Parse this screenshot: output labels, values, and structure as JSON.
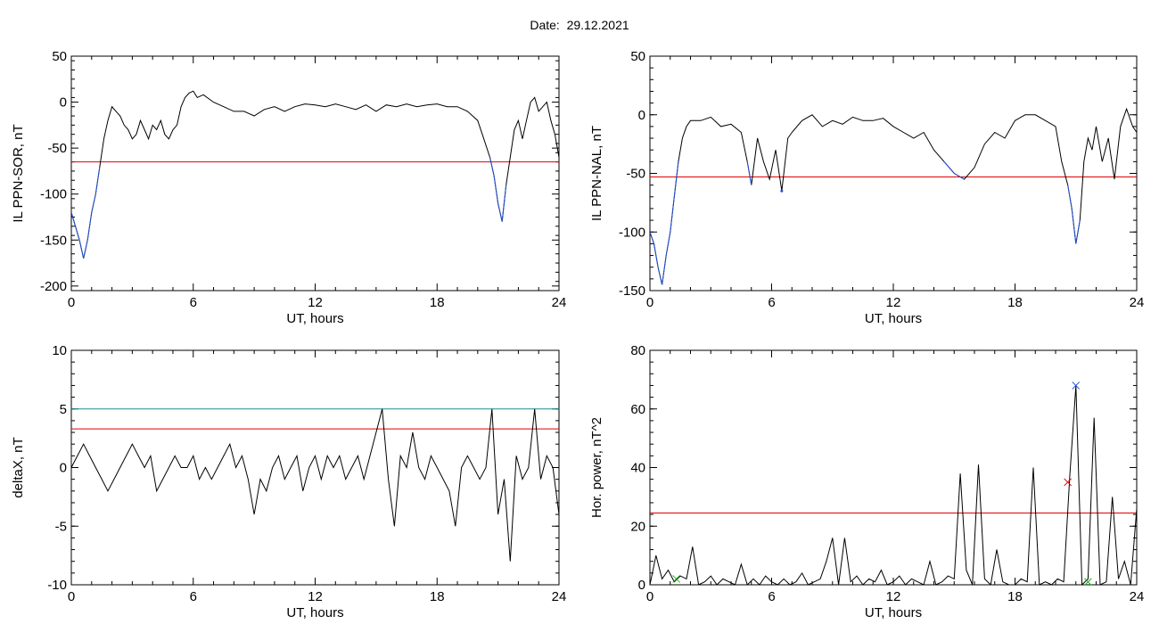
{
  "date_label": "Date:  29.12.2021",
  "chart_data": [
    {
      "type": "line",
      "ylabel": "IL PPN-SOR, nT",
      "xlabel": "UT, hours",
      "xlim": [
        0,
        24
      ],
      "ylim": [
        -205,
        50
      ],
      "xticks": [
        0,
        6,
        12,
        18,
        24
      ],
      "yticks": [
        50,
        0,
        -50,
        -100,
        -150,
        -200
      ],
      "threshold_lines": [
        {
          "value": -65,
          "color": "#e00000"
        }
      ],
      "series": [
        {
          "color": "#000000",
          "x": [
            0,
            0.2,
            0.4,
            0.6,
            0.8,
            1.0,
            1.2,
            1.4,
            1.6,
            1.8,
            2.0,
            2.2,
            2.4,
            2.6,
            2.8,
            3.0,
            3.2,
            3.4,
            3.6,
            3.8,
            4.0,
            4.2,
            4.4,
            4.6,
            4.8,
            5.0,
            5.2,
            5.4,
            5.6,
            5.8,
            6.0,
            6.2,
            6.5,
            7.0,
            7.5,
            8.0,
            8.5,
            9.0,
            9.5,
            10.0,
            10.5,
            11.0,
            11.5,
            12.0,
            12.5,
            13.0,
            13.5,
            14.0,
            14.5,
            15.0,
            15.5,
            16.0,
            16.5,
            17.0,
            17.5,
            18.0,
            18.5,
            19.0,
            19.5,
            20.0,
            20.3,
            20.6,
            20.8,
            21.0,
            21.2,
            21.4,
            21.6,
            21.8,
            22.0,
            22.2,
            22.4,
            22.6,
            22.8,
            23.0,
            23.2,
            23.4,
            23.6,
            23.8,
            24.0
          ],
          "y": [
            -120,
            -135,
            -150,
            -170,
            -150,
            -120,
            -100,
            -70,
            -40,
            -20,
            -5,
            -10,
            -15,
            -25,
            -30,
            -40,
            -35,
            -20,
            -30,
            -40,
            -25,
            -30,
            -20,
            -35,
            -40,
            -30,
            -25,
            -5,
            5,
            10,
            12,
            5,
            8,
            0,
            -5,
            -10,
            -10,
            -15,
            -8,
            -5,
            -10,
            -5,
            -2,
            -3,
            -5,
            -2,
            -5,
            -8,
            -3,
            -10,
            -3,
            -5,
            -2,
            -5,
            -3,
            -2,
            -5,
            -5,
            -10,
            -20,
            -40,
            -60,
            -80,
            -110,
            -130,
            -90,
            -60,
            -30,
            -20,
            -40,
            -20,
            0,
            5,
            -10,
            -5,
            0,
            -20,
            -35,
            -60
          ]
        },
        {
          "color": "#1f4fd0",
          "x": [
            0,
            0.2,
            0.4,
            0.6,
            0.8,
            1.0,
            1.2,
            1.4
          ],
          "y": [
            -120,
            -135,
            -150,
            -170,
            -150,
            -120,
            -100,
            -70
          ]
        },
        {
          "color": "#1f4fd0",
          "x": [
            20.6,
            20.8,
            21.0,
            21.2,
            21.4
          ],
          "y": [
            -60,
            -80,
            -110,
            -130,
            -90
          ]
        }
      ]
    },
    {
      "type": "line",
      "ylabel": "IL PPN-NAL, nT",
      "xlabel": "UT, hours",
      "xlim": [
        0,
        24
      ],
      "ylim": [
        -150,
        50
      ],
      "xticks": [
        0,
        6,
        12,
        18,
        24
      ],
      "yticks": [
        50,
        0,
        -50,
        -100,
        -150
      ],
      "threshold_lines": [
        {
          "value": -53,
          "color": "#e00000"
        }
      ],
      "series": [
        {
          "color": "#000000",
          "x": [
            0,
            0.2,
            0.4,
            0.6,
            0.8,
            1.0,
            1.2,
            1.4,
            1.6,
            1.8,
            2.0,
            2.5,
            3.0,
            3.5,
            4.0,
            4.5,
            4.8,
            5.0,
            5.3,
            5.6,
            5.9,
            6.2,
            6.5,
            6.8,
            7.0,
            7.5,
            8.0,
            8.5,
            9.0,
            9.5,
            10.0,
            10.5,
            11.0,
            11.5,
            12.0,
            12.5,
            13.0,
            13.5,
            14.0,
            14.5,
            15.0,
            15.5,
            16.0,
            16.5,
            17.0,
            17.5,
            18.0,
            18.5,
            19.0,
            19.5,
            20.0,
            20.3,
            20.6,
            20.8,
            21.0,
            21.2,
            21.4,
            21.6,
            21.8,
            22.0,
            22.3,
            22.6,
            22.9,
            23.2,
            23.5,
            23.8,
            24.0
          ],
          "y": [
            -100,
            -110,
            -130,
            -145,
            -120,
            -100,
            -70,
            -40,
            -20,
            -10,
            -5,
            -5,
            -2,
            -10,
            -8,
            -15,
            -40,
            -60,
            -20,
            -40,
            -55,
            -30,
            -65,
            -20,
            -15,
            -5,
            0,
            -10,
            -5,
            -8,
            -2,
            -5,
            -5,
            -3,
            -10,
            -15,
            -20,
            -15,
            -30,
            -40,
            -50,
            -55,
            -45,
            -25,
            -15,
            -20,
            -5,
            0,
            0,
            -5,
            -10,
            -40,
            -60,
            -80,
            -110,
            -90,
            -40,
            -20,
            -30,
            -10,
            -40,
            -20,
            -55,
            -10,
            5,
            -10,
            -15
          ]
        },
        {
          "color": "#1f4fd0",
          "x": [
            0,
            0.2,
            0.4,
            0.6,
            0.8,
            1.0,
            1.2,
            1.4
          ],
          "y": [
            -100,
            -110,
            -130,
            -145,
            -120,
            -100,
            -70,
            -40
          ]
        },
        {
          "color": "#1f4fd0",
          "x": [
            4.8,
            5.0
          ],
          "y": [
            -40,
            -60
          ]
        },
        {
          "color": "#1f4fd0",
          "x": [
            6.5
          ],
          "y": [
            -65
          ]
        },
        {
          "color": "#1f4fd0",
          "x": [
            14.5,
            15.0,
            15.5
          ],
          "y": [
            -40,
            -50,
            -55
          ]
        },
        {
          "color": "#1f4fd0",
          "x": [
            20.6,
            20.8,
            21.0,
            21.2
          ],
          "y": [
            -60,
            -80,
            -110,
            -90
          ]
        }
      ]
    },
    {
      "type": "line",
      "ylabel": "deltaX, nT",
      "xlabel": "UT, hours",
      "xlim": [
        0,
        24
      ],
      "ylim": [
        -10,
        10
      ],
      "xticks": [
        0,
        6,
        12,
        18,
        24
      ],
      "yticks": [
        10,
        5,
        0,
        -5,
        -10
      ],
      "threshold_lines": [
        {
          "value": 5,
          "color": "#1a8f8f"
        },
        {
          "value": 3.3,
          "color": "#e00000"
        }
      ],
      "series": [
        {
          "color": "#000000",
          "x": [
            0,
            0.3,
            0.6,
            0.9,
            1.2,
            1.5,
            1.8,
            2.1,
            2.4,
            2.7,
            3.0,
            3.3,
            3.6,
            3.9,
            4.2,
            4.5,
            4.8,
            5.1,
            5.4,
            5.7,
            6.0,
            6.3,
            6.6,
            6.9,
            7.2,
            7.5,
            7.8,
            8.1,
            8.4,
            8.7,
            9.0,
            9.3,
            9.6,
            9.9,
            10.2,
            10.5,
            10.8,
            11.1,
            11.4,
            11.7,
            12.0,
            12.3,
            12.6,
            12.9,
            13.2,
            13.5,
            13.8,
            14.1,
            14.4,
            14.7,
            15.0,
            15.3,
            15.6,
            15.9,
            16.2,
            16.5,
            16.8,
            17.1,
            17.4,
            17.7,
            18.0,
            18.3,
            18.6,
            18.9,
            19.2,
            19.5,
            19.8,
            20.1,
            20.4,
            20.7,
            21.0,
            21.3,
            21.6,
            21.9,
            22.2,
            22.5,
            22.8,
            23.1,
            23.4,
            23.7,
            24.0
          ],
          "y": [
            0,
            1,
            2,
            1,
            0,
            -1,
            -2,
            -1,
            0,
            1,
            2,
            1,
            0,
            1,
            -2,
            -1,
            0,
            1,
            0,
            0,
            1,
            -1,
            0,
            -1,
            0,
            1,
            2,
            0,
            1,
            -1,
            -4,
            -1,
            -2,
            0,
            1,
            -1,
            0,
            1,
            -2,
            0,
            1,
            -1,
            1,
            0,
            1,
            -1,
            0,
            1,
            -1,
            1,
            3,
            5,
            -1,
            -5,
            1,
            0,
            3,
            0,
            -1,
            1,
            0,
            -1,
            -2,
            -5,
            0,
            1,
            0,
            -1,
            0,
            5,
            -4,
            -1,
            -8,
            1,
            -1,
            0,
            5,
            -1,
            1,
            0,
            -4
          ]
        }
      ]
    },
    {
      "type": "line",
      "ylabel": "Hor. power, nT^2",
      "xlabel": "UT, hours",
      "xlim": [
        0,
        24
      ],
      "ylim": [
        0,
        80
      ],
      "xticks": [
        0,
        6,
        12,
        18,
        24
      ],
      "yticks": [
        80,
        60,
        40,
        20,
        0
      ],
      "threshold_lines": [
        {
          "value": 24.5,
          "color": "#e00000"
        }
      ],
      "series": [
        {
          "color": "#000000",
          "x": [
            0,
            0.3,
            0.6,
            0.9,
            1.2,
            1.5,
            1.8,
            2.1,
            2.4,
            2.7,
            3.0,
            3.3,
            3.6,
            3.9,
            4.2,
            4.5,
            4.8,
            5.1,
            5.4,
            5.7,
            6.0,
            6.3,
            6.6,
            6.9,
            7.2,
            7.5,
            7.8,
            8.1,
            8.4,
            8.7,
            9.0,
            9.3,
            9.6,
            9.9,
            10.2,
            10.5,
            10.8,
            11.1,
            11.4,
            11.7,
            12.0,
            12.3,
            12.6,
            12.9,
            13.2,
            13.5,
            13.8,
            14.1,
            14.4,
            14.7,
            15.0,
            15.3,
            15.6,
            15.9,
            16.2,
            16.5,
            16.8,
            17.1,
            17.4,
            17.7,
            18.0,
            18.3,
            18.6,
            18.9,
            19.2,
            19.5,
            19.8,
            20.1,
            20.4,
            20.7,
            21.0,
            21.3,
            21.6,
            21.9,
            22.2,
            22.5,
            22.8,
            23.1,
            23.4,
            23.7,
            24.0
          ],
          "y": [
            0,
            10,
            2,
            5,
            1,
            3,
            2,
            13,
            0,
            1,
            3,
            0,
            2,
            1,
            0,
            7,
            0,
            2,
            0,
            3,
            1,
            0,
            2,
            0,
            1,
            4,
            0,
            1,
            2,
            8,
            16,
            0,
            16,
            1,
            3,
            0,
            2,
            1,
            5,
            0,
            1,
            3,
            0,
            2,
            1,
            0,
            8,
            0,
            1,
            3,
            2,
            38,
            5,
            0,
            41,
            2,
            0,
            12,
            1,
            0,
            0,
            2,
            1,
            40,
            0,
            1,
            0,
            2,
            1,
            37,
            68,
            0,
            2,
            57,
            0,
            1,
            30,
            2,
            8,
            0,
            26
          ]
        }
      ],
      "markers": [
        {
          "x": 1.3,
          "y": 2,
          "symbol": "x",
          "color": "#20b020"
        },
        {
          "x": 20.6,
          "y": 35,
          "symbol": "x",
          "color": "#e00000"
        },
        {
          "x": 21.0,
          "y": 68,
          "symbol": "x",
          "color": "#1f4fd0"
        },
        {
          "x": 21.6,
          "y": 1,
          "symbol": "x",
          "color": "#20b020"
        }
      ]
    }
  ]
}
